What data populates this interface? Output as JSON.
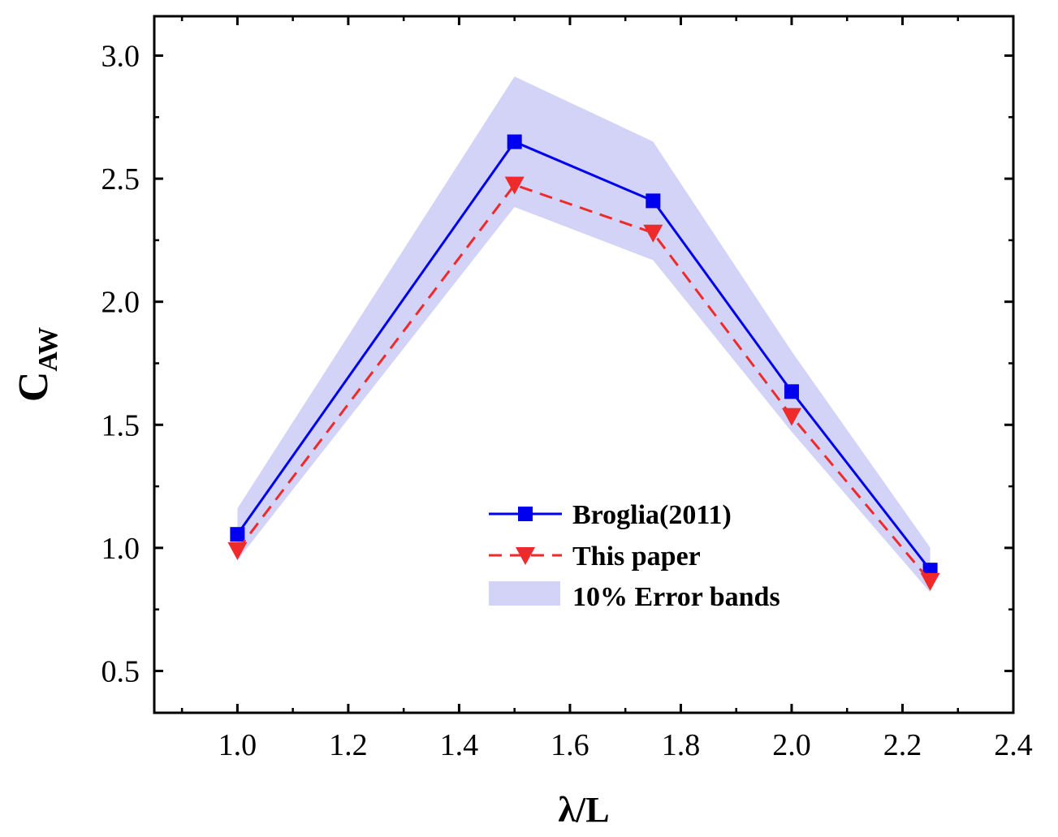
{
  "chart_data": {
    "type": "line",
    "title": "",
    "xlabel": "λ/L",
    "ylabel_main": "C",
    "ylabel_sub": "AW",
    "xlim": [
      0.85,
      2.4
    ],
    "ylim": [
      0.33,
      3.16
    ],
    "xticks": [
      1.0,
      1.2,
      1.4,
      1.6,
      1.8,
      2.0,
      2.2,
      2.4
    ],
    "xtick_labels": [
      "1.0",
      "1.2",
      "1.4",
      "1.6",
      "1.8",
      "2.0",
      "2.2",
      "2.4"
    ],
    "yticks": [
      0.5,
      1.0,
      1.5,
      2.0,
      2.5,
      3.0
    ],
    "ytick_labels": [
      "0.5",
      "1.0",
      "1.5",
      "2.0",
      "2.5",
      "3.0"
    ],
    "x": [
      1.0,
      1.5,
      1.75,
      2.0,
      2.25
    ],
    "series": [
      {
        "name": "Broglia(2011)",
        "values": [
          1.055,
          2.65,
          2.41,
          1.635,
          0.91
        ],
        "color": "#0000ee",
        "marker": "square",
        "line": "solid"
      },
      {
        "name": "This paper",
        "values": [
          0.99,
          2.475,
          2.28,
          1.535,
          0.865
        ],
        "color": "#ee2a2a",
        "marker": "triangle-down",
        "line": "dashed"
      }
    ],
    "band": {
      "name": "10% Error bands",
      "color": "#d3d3f7",
      "base_series": "Broglia(2011)",
      "relative_error": 0.1
    },
    "legend": [
      "Broglia(2011)",
      "This paper",
      "10% Error bands"
    ],
    "legend_position": "lower-right",
    "grid": false
  }
}
